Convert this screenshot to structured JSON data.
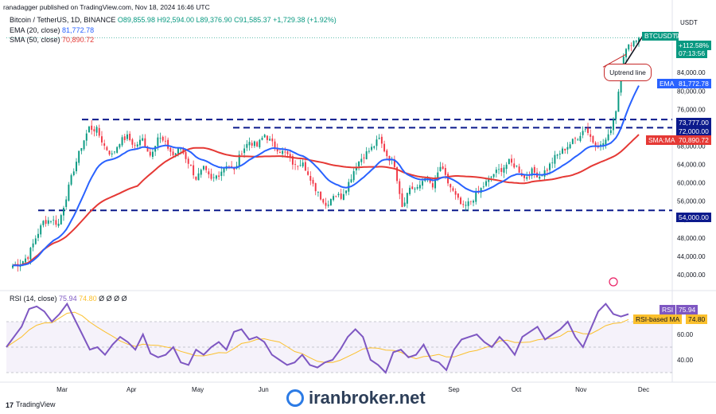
{
  "header": {
    "publisher": "ranadagger published on TradingView.com, Nov 18, 2024 16:46 UTC",
    "symbol_line": "Bitcoin / TetherUS, 1D, BINANCE",
    "o": "O89,855.98",
    "h": "H92,594.00",
    "l": "L89,376.90",
    "c": "C91,585.37",
    "chg": "+1,729.38 (+1.92%)",
    "ema_label": "EMA (20, close)",
    "ema_val": "81,772.78",
    "sma_label": "SMA (50, close)",
    "sma_val": "70,890.72",
    "rsi_label": "RSI (14, close)",
    "rsi_val": "75.94",
    "rsi_ma_val": "74.80",
    "rsi_extra": "Ø Ø Ø Ø"
  },
  "colors": {
    "up": "#089981",
    "down": "#f23645",
    "ema": "#2962ff",
    "sma": "#e53935",
    "rsi": "#7e57c2",
    "rsi_ma": "#fbc02d",
    "level": "#0c1a8c"
  },
  "chart_data": [
    {
      "type": "candlestick",
      "title": "Bitcoin / TetherUS, 1D, BINANCE",
      "currency": "USDT",
      "ylim": [
        36000,
        96000
      ],
      "y_ticks": [
        "40,000.00",
        "44,000.00",
        "48,000.00",
        "52,000.00",
        "56,000.00",
        "60,000.00",
        "64,000.00",
        "68,000.00",
        "76,000.00",
        "80,000.00",
        "84,000.00"
      ],
      "x_ticks": [
        "Mar",
        "Apr",
        "May",
        "Jun",
        "Sep",
        "Oct",
        "Nov",
        "Dec"
      ],
      "horizontal_levels": [
        73777,
        72000,
        54000
      ],
      "labels": {
        "last_symbol": "BTCUSDT",
        "last_price": "91,585.37",
        "last_change": "+112.58%",
        "countdown": "07:13:56",
        "ema_tag": "EMA",
        "ema_price": "81,772.78",
        "level1": "73,777.00",
        "level2": "72,000.00",
        "sma_tag": "SMA:MA",
        "sma_price": "70,890.72",
        "level3": "54,000.00",
        "annotation": "Uptrend line"
      },
      "price_keypoints": [
        42000,
        42500,
        44000,
        48000,
        51500,
        52000,
        51000,
        57000,
        63000,
        68000,
        72000,
        71500,
        68000,
        66000,
        69000,
        70000,
        68000,
        69500,
        66000,
        70000,
        68500,
        66000,
        67500,
        64500,
        61000,
        63000,
        60500,
        62000,
        64000,
        62500,
        67000,
        69000,
        68000,
        70500,
        68500,
        67000,
        66000,
        63500,
        65000,
        60000,
        58000,
        55000,
        57500,
        57000,
        60000,
        64000,
        66000,
        67500,
        69500,
        66000,
        64000,
        55000,
        59000,
        58500,
        61500,
        59000,
        63500,
        60000,
        57000,
        54500,
        56000,
        58000,
        60000,
        62000,
        63000,
        64500,
        63500,
        61000,
        62500,
        61500,
        63000,
        65500,
        67000,
        68500,
        70000,
        72000,
        69000,
        68000,
        70000,
        76000,
        88000,
        90500,
        91585.37
      ],
      "ema": {
        "name": "EMA (20, close)",
        "start": 42000,
        "end": 81772.78
      },
      "sma": {
        "name": "SMA (50, close)",
        "start": 42000,
        "end": 70890.72
      }
    },
    {
      "type": "line",
      "title": "RSI (14, close)",
      "ylim": [
        25,
        90
      ],
      "y_ticks": [
        "40.00",
        "60.00",
        "80.00"
      ],
      "series": [
        {
          "name": "RSI",
          "last": 75.94,
          "values": [
            50,
            58,
            66,
            80,
            82,
            78,
            70,
            76,
            84,
            72,
            60,
            48,
            50,
            44,
            52,
            58,
            54,
            48,
            60,
            45,
            42,
            44,
            50,
            38,
            36,
            48,
            44,
            50,
            54,
            48,
            62,
            64,
            56,
            58,
            54,
            44,
            40,
            36,
            38,
            44,
            36,
            34,
            38,
            40,
            48,
            58,
            64,
            58,
            40,
            36,
            30,
            46,
            48,
            42,
            44,
            52,
            40,
            38,
            32,
            48,
            56,
            58,
            60,
            54,
            50,
            58,
            52,
            44,
            58,
            62,
            66,
            56,
            60,
            64,
            70,
            58,
            50,
            64,
            78,
            84,
            76,
            74,
            75.94
          ]
        },
        {
          "name": "RSI-based MA",
          "last": 74.8
        }
      ],
      "labels": {
        "rsi_tag": "RSI",
        "rsi_price": "75.94",
        "ma_tag": "RSI-based MA",
        "ma_price": "74.80"
      }
    }
  ],
  "watermark": "iranbroker.net",
  "brand": "TradingView"
}
